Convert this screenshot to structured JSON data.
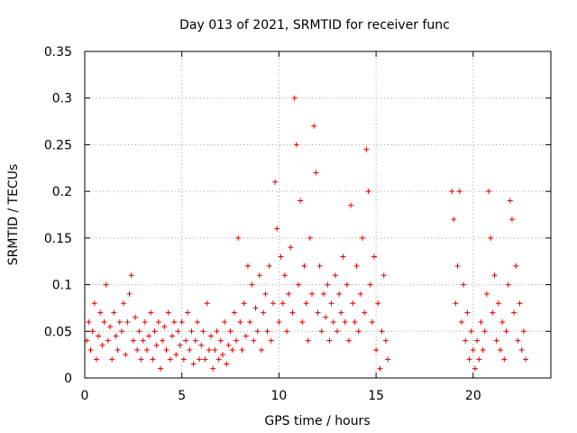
{
  "chart_data": {
    "type": "scatter",
    "title": "Day 013 of 2021, SRMTID for receiver func",
    "xlabel": "GPS time / hours",
    "ylabel": "SRMTID / TECUs",
    "xlim": [
      0,
      24
    ],
    "ylim": [
      0,
      0.35
    ],
    "x_ticks": [
      "0",
      "5",
      "10",
      "15",
      "20"
    ],
    "y_ticks": [
      "0",
      "0.05",
      "0.1",
      "0.15",
      "0.2",
      "0.25",
      "0.3",
      "0.35"
    ],
    "grid": true,
    "marker": "+",
    "color": "#e00000",
    "series": [
      {
        "points": [
          [
            0.1,
            0.04
          ],
          [
            0.2,
            0.06
          ],
          [
            0.3,
            0.03
          ],
          [
            0.4,
            0.05
          ],
          [
            0.5,
            0.08
          ],
          [
            0.6,
            0.02
          ],
          [
            0.7,
            0.045
          ],
          [
            0.8,
            0.07
          ],
          [
            0.9,
            0.035
          ],
          [
            1.0,
            0.06
          ],
          [
            1.1,
            0.1
          ],
          [
            1.2,
            0.04
          ],
          [
            1.3,
            0.055
          ],
          [
            1.4,
            0.02
          ],
          [
            1.5,
            0.07
          ],
          [
            1.6,
            0.045
          ],
          [
            1.7,
            0.03
          ],
          [
            1.8,
            0.06
          ],
          [
            1.9,
            0.05
          ],
          [
            2.0,
            0.08
          ],
          [
            2.1,
            0.025
          ],
          [
            2.2,
            0.06
          ],
          [
            2.3,
            0.09
          ],
          [
            2.4,
            0.11
          ],
          [
            2.5,
            0.04
          ],
          [
            2.6,
            0.065
          ],
          [
            2.7,
            0.03
          ],
          [
            2.8,
            0.05
          ],
          [
            2.9,
            0.02
          ],
          [
            3.0,
            0.04
          ],
          [
            3.1,
            0.06
          ],
          [
            3.2,
            0.03
          ],
          [
            3.3,
            0.045
          ],
          [
            3.4,
            0.07
          ],
          [
            3.5,
            0.02
          ],
          [
            3.6,
            0.05
          ],
          [
            3.7,
            0.035
          ],
          [
            3.8,
            0.06
          ],
          [
            3.9,
            0.01
          ],
          [
            4.0,
            0.04
          ],
          [
            4.1,
            0.055
          ],
          [
            4.2,
            0.03
          ],
          [
            4.3,
            0.07
          ],
          [
            4.4,
            0.02
          ],
          [
            4.5,
            0.045
          ],
          [
            4.6,
            0.06
          ],
          [
            4.7,
            0.025
          ],
          [
            4.8,
            0.05
          ],
          [
            4.9,
            0.035
          ],
          [
            5.0,
            0.06
          ],
          [
            5.1,
            0.02
          ],
          [
            5.2,
            0.04
          ],
          [
            5.3,
            0.07
          ],
          [
            5.4,
            0.03
          ],
          [
            5.5,
            0.05
          ],
          [
            5.6,
            0.015
          ],
          [
            5.7,
            0.04
          ],
          [
            5.8,
            0.06
          ],
          [
            5.9,
            0.02
          ],
          [
            6.0,
            0.035
          ],
          [
            6.1,
            0.05
          ],
          [
            6.2,
            0.02
          ],
          [
            6.3,
            0.08
          ],
          [
            6.4,
            0.03
          ],
          [
            6.5,
            0.045
          ],
          [
            6.6,
            0.01
          ],
          [
            6.7,
            0.03
          ],
          [
            6.8,
            0.05
          ],
          [
            6.9,
            0.02
          ],
          [
            7.0,
            0.04
          ],
          [
            7.1,
            0.025
          ],
          [
            7.2,
            0.06
          ],
          [
            7.3,
            0.015
          ],
          [
            7.4,
            0.035
          ],
          [
            7.5,
            0.05
          ],
          [
            7.6,
            0.03
          ],
          [
            7.7,
            0.07
          ],
          [
            7.8,
            0.04
          ],
          [
            7.9,
            0.15
          ],
          [
            8.0,
            0.06
          ],
          [
            8.1,
            0.03
          ],
          [
            8.2,
            0.08
          ],
          [
            8.3,
            0.045
          ],
          [
            8.4,
            0.12
          ],
          [
            8.5,
            0.06
          ],
          [
            8.6,
            0.1
          ],
          [
            8.7,
            0.04
          ],
          [
            8.8,
            0.075
          ],
          [
            8.9,
            0.05
          ],
          [
            9.0,
            0.11
          ],
          [
            9.1,
            0.03
          ],
          [
            9.2,
            0.07
          ],
          [
            9.3,
            0.09
          ],
          [
            9.4,
            0.05
          ],
          [
            9.5,
            0.12
          ],
          [
            9.6,
            0.04
          ],
          [
            9.7,
            0.08
          ],
          [
            9.8,
            0.21
          ],
          [
            9.9,
            0.16
          ],
          [
            10.0,
            0.06
          ],
          [
            10.1,
            0.13
          ],
          [
            10.2,
            0.08
          ],
          [
            10.3,
            0.11
          ],
          [
            10.4,
            0.05
          ],
          [
            10.5,
            0.09
          ],
          [
            10.6,
            0.14
          ],
          [
            10.7,
            0.07
          ],
          [
            10.8,
            0.3
          ],
          [
            10.9,
            0.25
          ],
          [
            11.0,
            0.1
          ],
          [
            11.1,
            0.19
          ],
          [
            11.2,
            0.06
          ],
          [
            11.3,
            0.12
          ],
          [
            11.4,
            0.08
          ],
          [
            11.5,
            0.04
          ],
          [
            11.6,
            0.15
          ],
          [
            11.7,
            0.09
          ],
          [
            11.8,
            0.27
          ],
          [
            11.9,
            0.22
          ],
          [
            12.0,
            0.07
          ],
          [
            12.1,
            0.12
          ],
          [
            12.2,
            0.05
          ],
          [
            12.3,
            0.09
          ],
          [
            12.4,
            0.065
          ],
          [
            12.5,
            0.1
          ],
          [
            12.6,
            0.04
          ],
          [
            12.7,
            0.08
          ],
          [
            12.8,
            0.06
          ],
          [
            12.9,
            0.11
          ],
          [
            13.0,
            0.05
          ],
          [
            13.1,
            0.09
          ],
          [
            13.2,
            0.07
          ],
          [
            13.3,
            0.13
          ],
          [
            13.4,
            0.06
          ],
          [
            13.5,
            0.1
          ],
          [
            13.6,
            0.04
          ],
          [
            13.7,
            0.185
          ],
          [
            13.8,
            0.08
          ],
          [
            13.9,
            0.06
          ],
          [
            14.0,
            0.12
          ],
          [
            14.1,
            0.05
          ],
          [
            14.2,
            0.09
          ],
          [
            14.3,
            0.15
          ],
          [
            14.4,
            0.07
          ],
          [
            14.5,
            0.245
          ],
          [
            14.6,
            0.2
          ],
          [
            14.7,
            0.1
          ],
          [
            14.8,
            0.06
          ],
          [
            14.9,
            0.13
          ],
          [
            15.0,
            0.03
          ],
          [
            15.1,
            0.08
          ],
          [
            15.2,
            0.01
          ],
          [
            15.3,
            0.05
          ],
          [
            15.4,
            0.11
          ],
          [
            15.5,
            0.04
          ],
          [
            15.6,
            0.02
          ],
          [
            18.9,
            0.2
          ],
          [
            19.0,
            0.17
          ],
          [
            19.1,
            0.08
          ],
          [
            19.2,
            0.12
          ],
          [
            19.3,
            0.2
          ],
          [
            19.4,
            0.06
          ],
          [
            19.5,
            0.1
          ],
          [
            19.6,
            0.04
          ],
          [
            19.7,
            0.07
          ],
          [
            19.8,
            0.02
          ],
          [
            19.9,
            0.05
          ],
          [
            20.0,
            0.03
          ],
          [
            20.1,
            0.01
          ],
          [
            20.2,
            0.04
          ],
          [
            20.3,
            0.02
          ],
          [
            20.4,
            0.06
          ],
          [
            20.5,
            0.03
          ],
          [
            20.6,
            0.05
          ],
          [
            20.7,
            0.09
          ],
          [
            20.8,
            0.2
          ],
          [
            20.9,
            0.15
          ],
          [
            21.0,
            0.07
          ],
          [
            21.1,
            0.11
          ],
          [
            21.2,
            0.04
          ],
          [
            21.3,
            0.08
          ],
          [
            21.4,
            0.03
          ],
          [
            21.5,
            0.06
          ],
          [
            21.6,
            0.02
          ],
          [
            21.7,
            0.05
          ],
          [
            21.8,
            0.1
          ],
          [
            21.9,
            0.19
          ],
          [
            22.0,
            0.17
          ],
          [
            22.1,
            0.07
          ],
          [
            22.2,
            0.12
          ],
          [
            22.3,
            0.04
          ],
          [
            22.4,
            0.08
          ],
          [
            22.5,
            0.03
          ],
          [
            22.6,
            0.05
          ],
          [
            22.7,
            0.02
          ]
        ]
      }
    ]
  }
}
